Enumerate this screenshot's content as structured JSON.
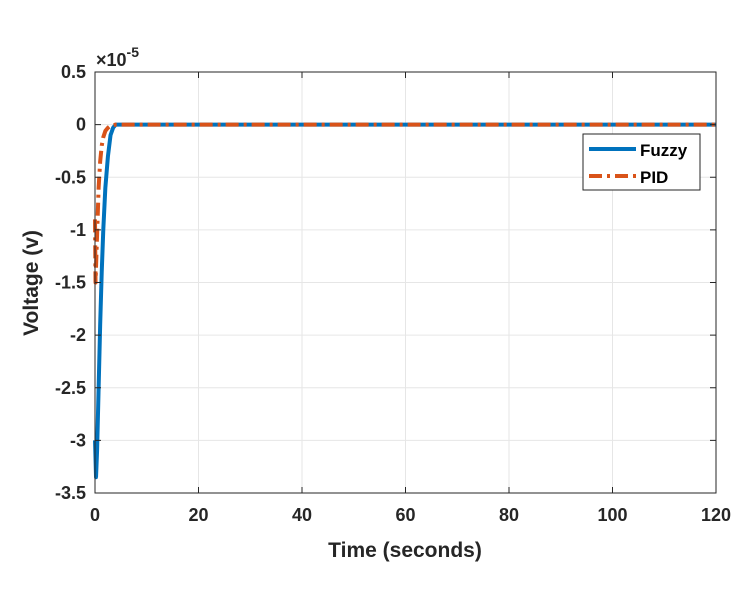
{
  "chart_data": {
    "type": "line",
    "title": "",
    "xlabel": "Time (seconds)",
    "ylabel": "Voltage (v)",
    "xlim": [
      0,
      120
    ],
    "ylim": [
      -3.5e-05,
      5e-06
    ],
    "x_ticks": [
      0,
      20,
      40,
      60,
      80,
      100,
      120
    ],
    "y_ticks": [
      -3.5,
      -3,
      -2.5,
      -2,
      -1.5,
      -1,
      -0.5,
      0,
      0.5
    ],
    "y_tick_labels": [
      "-3.5",
      "-3",
      "-2.5",
      "-2",
      "-1.5",
      "-1",
      "-0.5",
      "0",
      "0.5"
    ],
    "x_tick_labels": [
      "0",
      "20",
      "40",
      "60",
      "80",
      "100",
      "120"
    ],
    "y_exponent_label": "×10",
    "y_exponent_power": "-5",
    "grid": true,
    "legend_position": "top-right",
    "series": [
      {
        "name": "Fuzzy",
        "color": "#0072BD",
        "style": "solid",
        "x": [
          0,
          0.2,
          0.4,
          0.6,
          0.8,
          1.0,
          1.3,
          1.6,
          2.0,
          2.5,
          3.0,
          3.5,
          4.0,
          5.0,
          6.0,
          120
        ],
        "y": [
          -3e-05,
          -3.35e-05,
          -3.1e-05,
          -2.7e-05,
          -2.3e-05,
          -1.9e-05,
          -1.4e-05,
          -1e-05,
          -6e-06,
          -3e-06,
          -1e-06,
          -3e-07,
          0.0,
          0.0,
          0.0,
          0.0
        ]
      },
      {
        "name": "PID",
        "color": "#D95319",
        "style": "dashdot",
        "x": [
          0,
          0.1,
          0.3,
          0.5,
          0.7,
          1.0,
          1.3,
          1.6,
          2.0,
          2.5,
          3.0,
          4.0,
          5.0,
          120
        ],
        "y": [
          -9e-06,
          -1.5e-05,
          -1.2e-05,
          -9e-06,
          -6e-06,
          -3.5e-06,
          -2e-06,
          -1.2e-06,
          -6e-07,
          -3e-07,
          -1e-07,
          0.0,
          0.0,
          0.0
        ]
      }
    ]
  }
}
